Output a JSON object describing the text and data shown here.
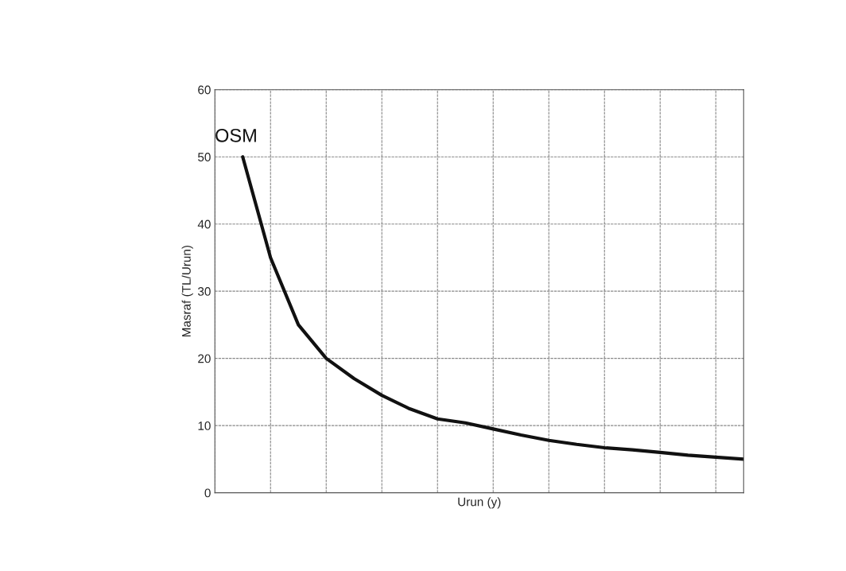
{
  "chart_data": {
    "type": "line",
    "xlabel": "Urun (y)",
    "ylabel": "Masraf (TL/Urun)",
    "categories": [
      null,
      null,
      null,
      null,
      null,
      null,
      null,
      null,
      null,
      null,
      null,
      null,
      null,
      null,
      null,
      null,
      null,
      null,
      null,
      null
    ],
    "series": [
      {
        "name": "OSM",
        "color": "#111111",
        "values": [
          null,
          50,
          35,
          25,
          20,
          17,
          14.5,
          12.5,
          11,
          10.4,
          9.5,
          8.6,
          7.8,
          7.2,
          6.7,
          6.4,
          6.0,
          5.6,
          5.3,
          5.0
        ]
      }
    ],
    "ylim": [
      0,
      60
    ],
    "yticks": [
      0,
      10,
      20,
      30,
      40,
      50,
      60
    ],
    "grid": true,
    "tick_labels": "y",
    "marker": "none",
    "line_style": "solid"
  }
}
